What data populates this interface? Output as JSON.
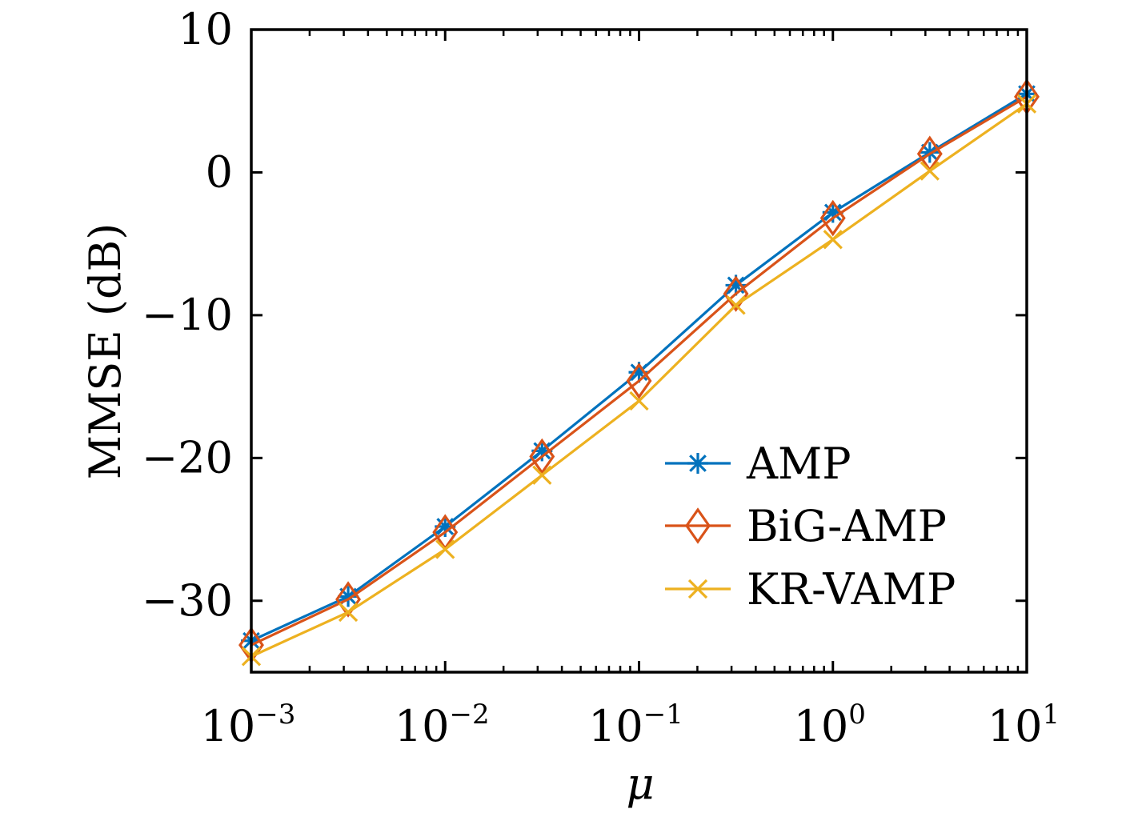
{
  "chart_data": {
    "type": "line",
    "title": "",
    "xlabel": "μ",
    "ylabel": "MMSE (dB)",
    "x_scale": "log",
    "xlim": [
      0.001,
      10
    ],
    "ylim": [
      -35,
      10
    ],
    "grid": false,
    "legend_position": "lower-right",
    "x": [
      0.001,
      0.00316,
      0.01,
      0.0316,
      0.1,
      0.316,
      1,
      3.16,
      10
    ],
    "x_ticks": [
      {
        "value": 0.001,
        "base": "10",
        "exp": "−3"
      },
      {
        "value": 0.01,
        "base": "10",
        "exp": "−2"
      },
      {
        "value": 0.1,
        "base": "10",
        "exp": "−1"
      },
      {
        "value": 1,
        "base": "10",
        "exp": "0"
      },
      {
        "value": 10,
        "base": "10",
        "exp": "1"
      }
    ],
    "y_ticks": [
      {
        "value": 10,
        "label": "10"
      },
      {
        "value": 0,
        "label": "0"
      },
      {
        "value": -10,
        "label": "−10"
      },
      {
        "value": -20,
        "label": "−20"
      },
      {
        "value": -30,
        "label": "−30"
      }
    ],
    "series": [
      {
        "name": "AMP",
        "color": "#0072BD",
        "marker": "asterisk",
        "values": [
          -32.8,
          -29.7,
          -24.8,
          -19.5,
          -14.0,
          -7.9,
          -2.8,
          1.4,
          5.5
        ]
      },
      {
        "name": "BiG-AMP",
        "color": "#D95319",
        "marker": "diamond",
        "values": [
          -33.1,
          -29.9,
          -25.2,
          -19.9,
          -14.6,
          -8.5,
          -3.2,
          1.3,
          5.3
        ]
      },
      {
        "name": "KR-VAMP",
        "color": "#EDB120",
        "marker": "x",
        "values": [
          -33.9,
          -30.8,
          -26.4,
          -21.2,
          -16.0,
          -9.3,
          -4.7,
          0.1,
          4.8
        ]
      }
    ]
  }
}
